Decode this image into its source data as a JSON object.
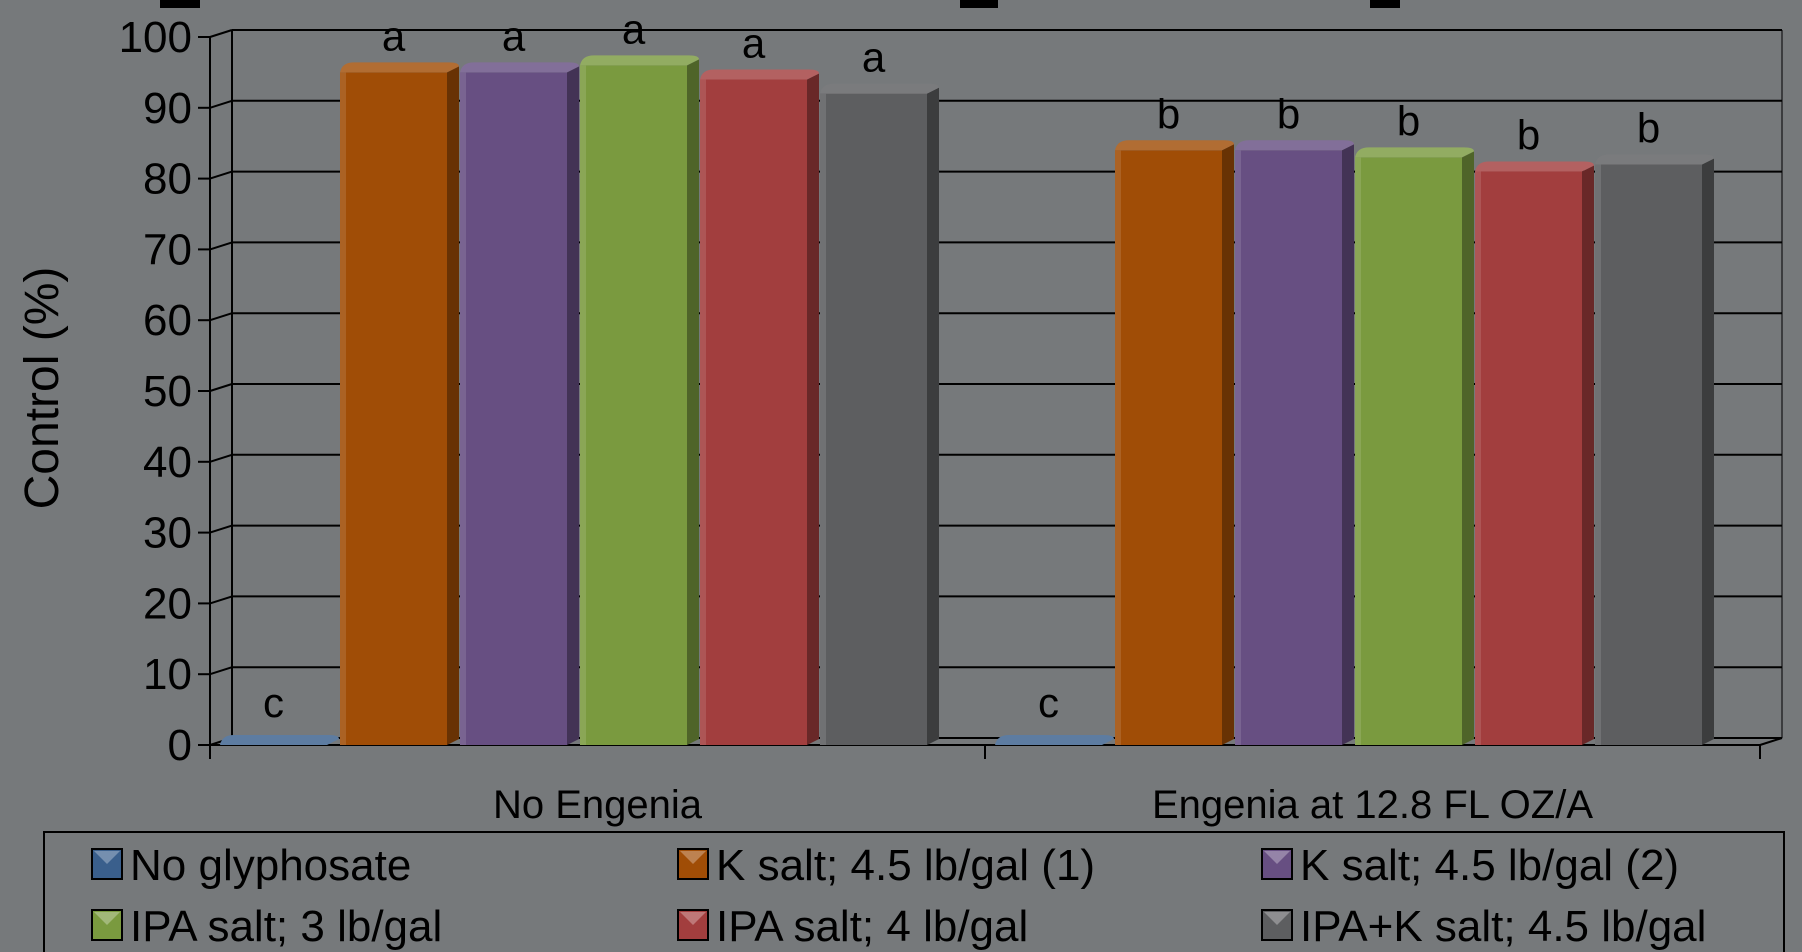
{
  "chart_data": {
    "type": "bar",
    "title": "",
    "xlabel": "",
    "ylabel": "Control (%)",
    "ylim": [
      0,
      100
    ],
    "yticks": [
      0,
      10,
      20,
      30,
      40,
      50,
      60,
      70,
      80,
      90,
      100
    ],
    "grid": true,
    "legend_position": "bottom",
    "categories": [
      "No Engenia",
      "Engenia at 12.8 FL OZ/A"
    ],
    "series": [
      {
        "name": "No glyphosate",
        "color": "#3a5f8c",
        "values": [
          0,
          0
        ],
        "letters": [
          "c",
          "c"
        ]
      },
      {
        "name": "K salt; 4.5 lb/gal (1)",
        "color": "#a04d06",
        "values": [
          95,
          84
        ],
        "letters": [
          "a",
          "b"
        ]
      },
      {
        "name": "K salt; 4.5 lb/gal (2)",
        "color": "#674f82",
        "values": [
          95,
          84
        ],
        "letters": [
          "a",
          "b"
        ]
      },
      {
        "name": "IPA salt; 3 lb/gal",
        "color": "#7a9a3f",
        "values": [
          96,
          83
        ],
        "letters": [
          "a",
          "b"
        ]
      },
      {
        "name": "IPA salt; 4 lb/gal",
        "color": "#a23e3e",
        "values": [
          94,
          81
        ],
        "letters": [
          "a",
          "b"
        ]
      },
      {
        "name": "IPA+K salt; 4.5 lb/gal",
        "color": "#5d5e60",
        "values": [
          92,
          82
        ],
        "letters": [
          "a",
          "b"
        ]
      }
    ]
  }
}
